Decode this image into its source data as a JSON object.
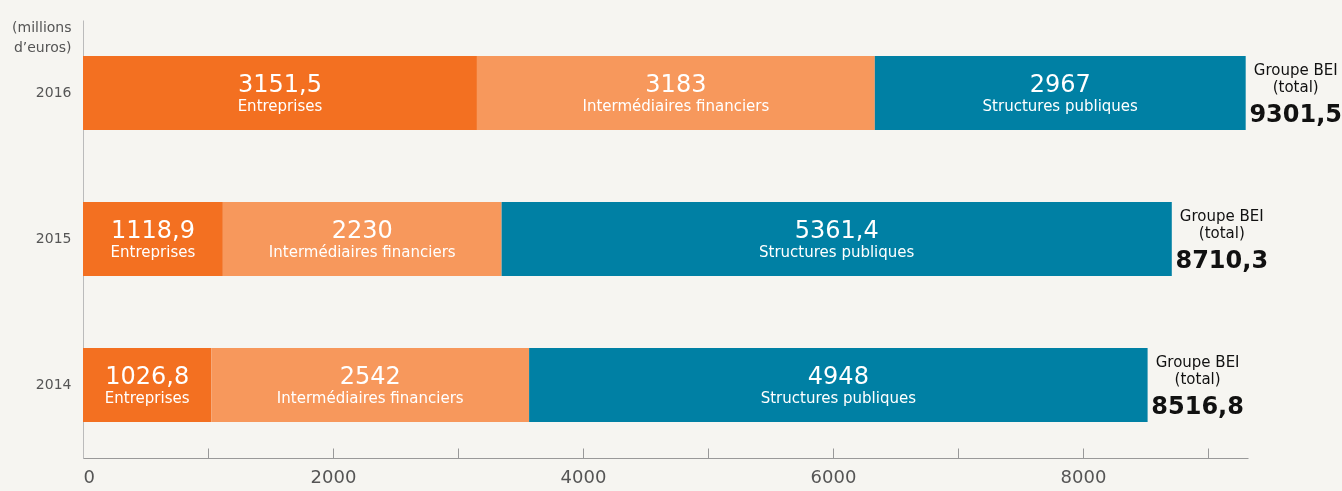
{
  "chart_data": {
    "type": "bar",
    "orientation": "horizontal",
    "stacked": true,
    "xlabel": "(millions\nd’euros)",
    "categories": [
      "2016",
      "2015",
      "2014"
    ],
    "series": [
      {
        "name": "Entreprises",
        "color": "#f37021",
        "values": [
          3151.5,
          1118.9,
          1026.8
        ],
        "value_labels": [
          "3151,5",
          "1118,9",
          "1026,8"
        ]
      },
      {
        "name": "Intermédiaires financiers",
        "color": "#f7985c",
        "values": [
          3183,
          2230,
          2542
        ],
        "value_labels": [
          "3183",
          "2230",
          "2542"
        ]
      },
      {
        "name": "Structures publiques",
        "color": "#0080a4",
        "values": [
          2967,
          5361.4,
          4948
        ],
        "value_labels": [
          "2967",
          "5361,4",
          "4948"
        ]
      }
    ],
    "totals": [
      "9301,5",
      "8710,3",
      "8516,8"
    ],
    "annotations": [
      {
        "text": "Groupe BEI\n(total)",
        "x": 9301.5,
        "y": "2016"
      },
      {
        "text": "Groupe BEI\n(total)",
        "x": 8710.3,
        "y": "2015"
      },
      {
        "text": "Groupe BEI\n(total)",
        "x": 8516.8,
        "y": "2014"
      }
    ],
    "xlim": [
      0,
      9320
    ],
    "xticks": [
      {
        "value": 0,
        "label": "0"
      },
      {
        "value": 1000,
        "label": null
      },
      2000,
      {
        "value": 3000,
        "label": null
      },
      4000,
      {
        "value": 5000,
        "label": null
      },
      6000,
      {
        "value": 7000,
        "label": null
      },
      8000,
      {
        "value": 9000,
        "label": null
      }
    ]
  }
}
